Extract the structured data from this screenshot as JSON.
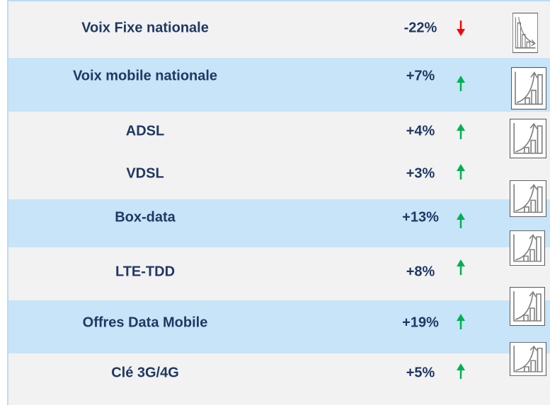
{
  "rows": [
    {
      "label": "Voix Fixe nationale",
      "change": "-22%",
      "trend": "down"
    },
    {
      "label": "Voix mobile nationale",
      "change": "+7%",
      "trend": "up"
    },
    {
      "label": "ADSL",
      "change": "+4%",
      "trend": "up"
    },
    {
      "label": "VDSL",
      "change": "+3%",
      "trend": "up"
    },
    {
      "label": "Box-data",
      "change": "+13%",
      "trend": "up"
    },
    {
      "label": "LTE-TDD",
      "change": "+8%",
      "trend": "up"
    },
    {
      "label": "Offres Data Mobile",
      "change": "+19%",
      "trend": "up"
    },
    {
      "label": "Clé 3G/4G",
      "change": "+5%",
      "trend": "up"
    }
  ],
  "colors": {
    "up": "#00b050",
    "down": "#ff0000"
  }
}
